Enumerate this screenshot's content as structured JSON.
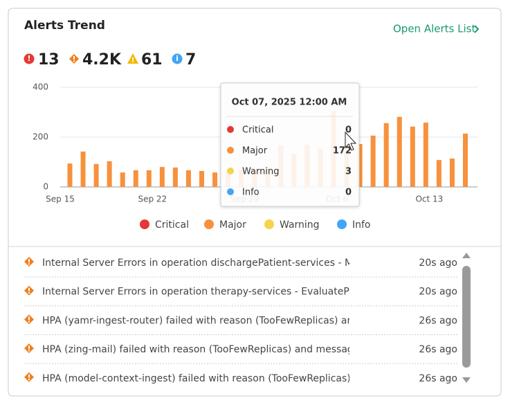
{
  "header": {
    "title": "Alerts Trend",
    "link": "Open Alerts List"
  },
  "counts": [
    13,
    "4.2K",
    61,
    7
  ],
  "chart_data": {
    "type": "bar",
    "categories": [
      "Sep 15",
      null,
      null,
      null,
      null,
      null,
      null,
      "Sep 22",
      null,
      null,
      null,
      null,
      null,
      null,
      "Sep 29",
      null,
      null,
      null,
      null,
      null,
      null,
      "Oct 6",
      null,
      null,
      null,
      null,
      null,
      null,
      "Oct 13",
      null,
      null
    ],
    "series": [
      {
        "name": "Major",
        "color": "#f7913d",
        "values": [
          94,
          142,
          92,
          103,
          58,
          67,
          67,
          80,
          78,
          67,
          64,
          58,
          60,
          70,
          60,
          80,
          167,
          133,
          170,
          153,
          305,
          190,
          172,
          206,
          256,
          281,
          242,
          258,
          108,
          114,
          214
        ]
      }
    ],
    "ylim": [
      0,
      400
    ],
    "yticks": [
      0,
      200,
      400
    ],
    "grid": true,
    "legend": [
      {
        "name": "Critical",
        "color": "#e53935"
      },
      {
        "name": "Major",
        "color": "#f7913d"
      },
      {
        "name": "Warning",
        "color": "#f5d34c"
      },
      {
        "name": "Info",
        "color": "#42a5f5"
      }
    ],
    "tooltip": {
      "title": "Oct 07, 2025 12:00 AM",
      "rows": [
        {
          "name": "Critical",
          "value": 0
        },
        {
          "name": "Major",
          "value": 172
        },
        {
          "name": "Warning",
          "value": 3
        },
        {
          "name": "Info",
          "value": 0
        }
      ]
    }
  },
  "alerts": [
    {
      "text": "Internal Server Errors in operation dischargePatient-services - Mo",
      "time": "20s ago"
    },
    {
      "text": "Internal Server Errors in operation therapy-services - EvaluatePati",
      "time": "20s ago"
    },
    {
      "text": "HPA (yamr-ingest-router) failed with reason (TooFewReplicas) and",
      "time": "26s ago"
    },
    {
      "text": "HPA (zing-mail) failed with reason (TooFewReplicas) and message",
      "time": "26s ago"
    },
    {
      "text": "HPA (model-context-ingest) failed with reason (TooFewReplicas) a",
      "time": "26s ago"
    }
  ]
}
